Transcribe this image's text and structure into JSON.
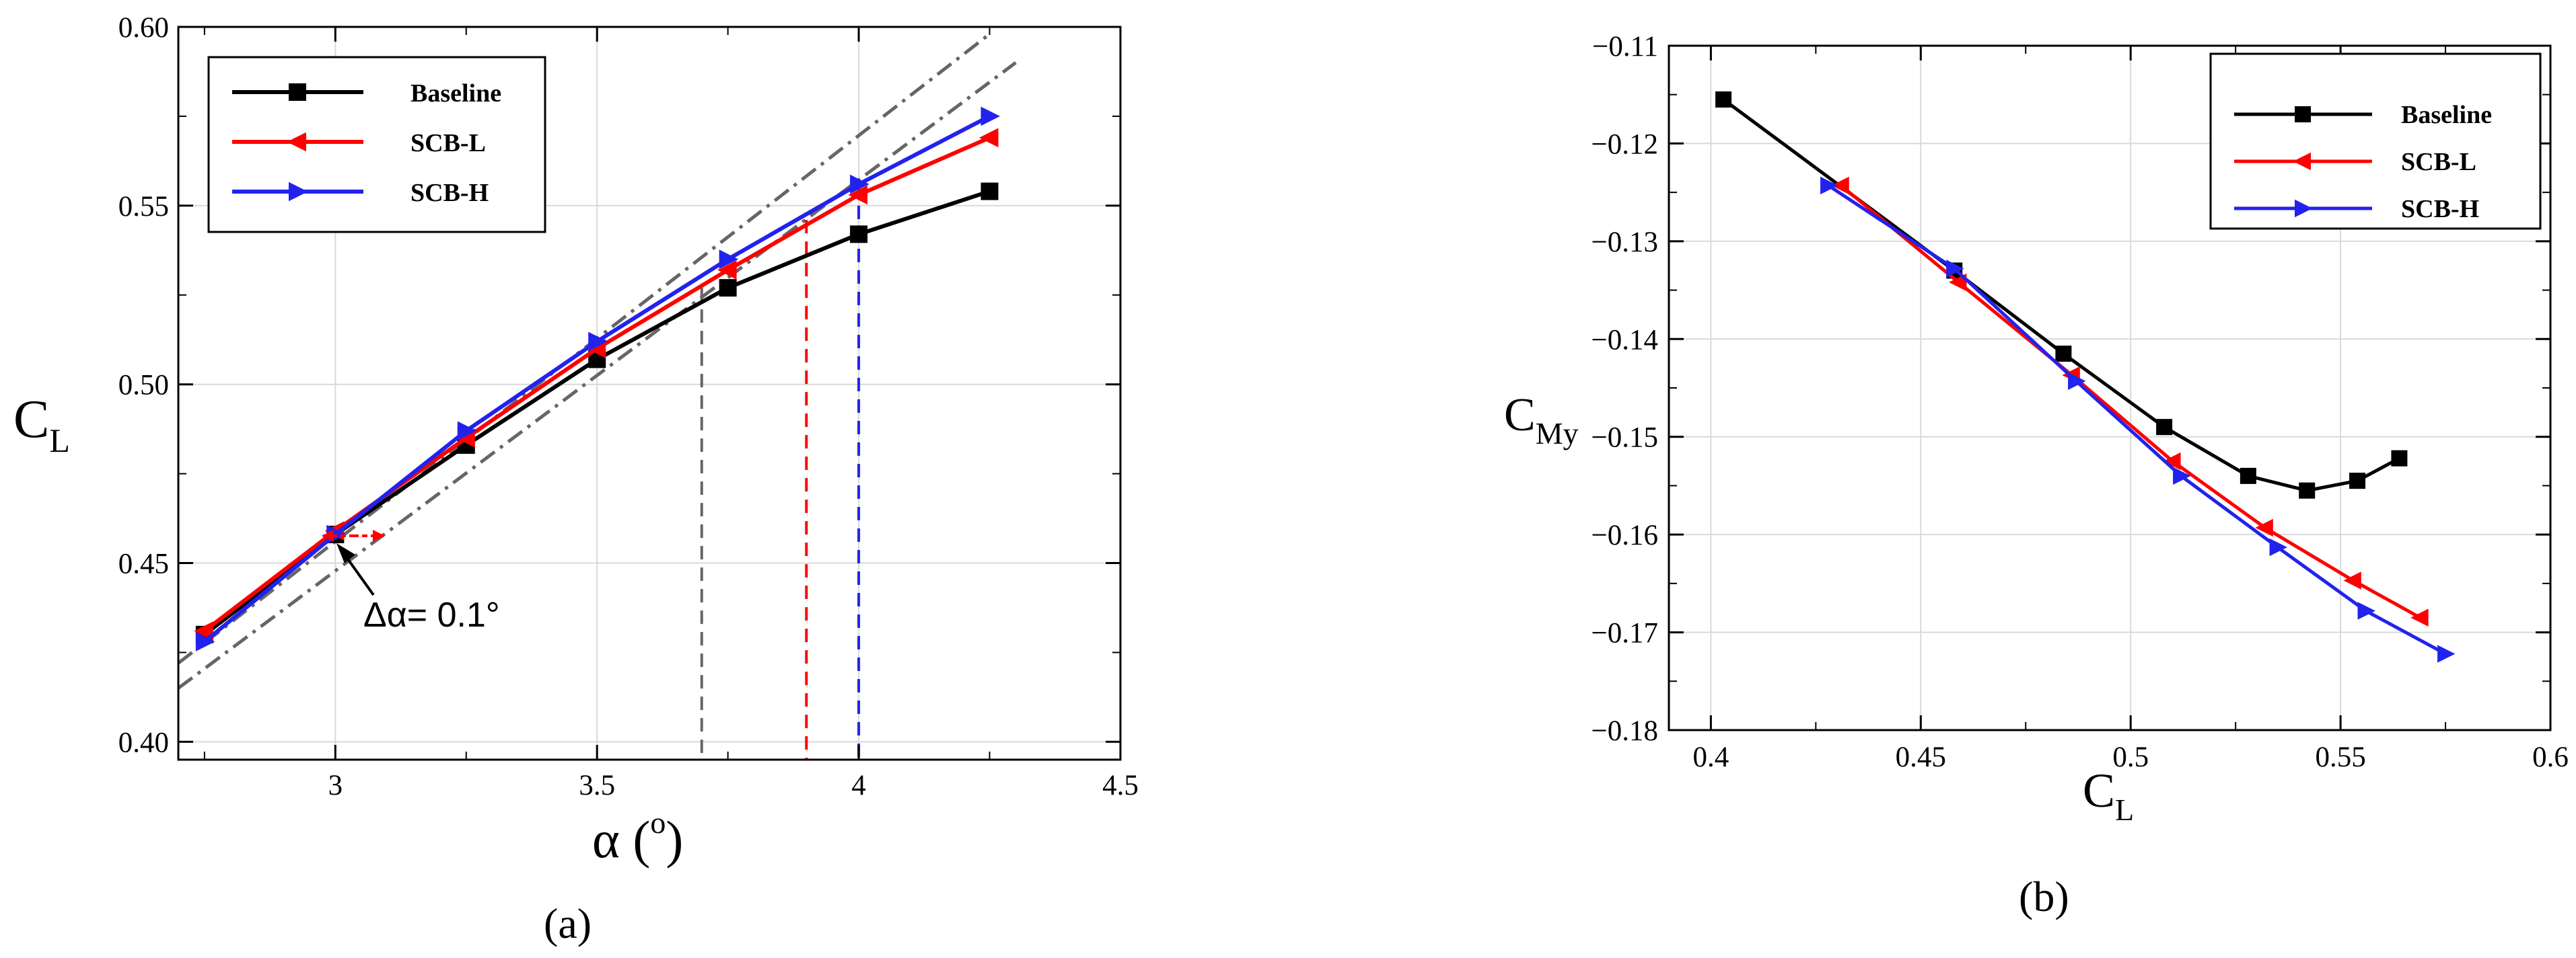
{
  "chart_data": [
    {
      "type": "line",
      "panel_label": "(a)",
      "xlabel": "α (°)",
      "ylabel": "C_L",
      "xlim": [
        2.7,
        4.5
      ],
      "ylim": [
        0.395,
        0.6
      ],
      "xticks": [
        "3",
        "3.5",
        "4",
        "4.5"
      ],
      "yticks": [
        "0.40",
        "0.45",
        "0.50",
        "0.55",
        "0.60"
      ],
      "grid": true,
      "legend_position": "top-left",
      "annotation": "Δα= 0.1°",
      "series": [
        {
          "name": "Baseline",
          "color": "#000000",
          "marker": "square",
          "x": [
            2.75,
            3.0,
            3.25,
            3.5,
            3.75,
            4.0,
            4.25
          ],
          "y": [
            0.43,
            0.458,
            0.483,
            0.507,
            0.527,
            0.542,
            0.554
          ]
        },
        {
          "name": "SCB-L",
          "color": "#ff0000",
          "marker": "triangle-left",
          "x": [
            2.75,
            3.0,
            3.25,
            3.5,
            3.75,
            4.0,
            4.25
          ],
          "y": [
            0.431,
            0.459,
            0.485,
            0.51,
            0.532,
            0.553,
            0.569
          ]
        },
        {
          "name": "SCB-H",
          "color": "#2222ee",
          "marker": "triangle-right",
          "x": [
            2.75,
            3.0,
            3.25,
            3.5,
            3.75,
            4.0,
            4.25
          ],
          "y": [
            0.428,
            0.458,
            0.487,
            0.512,
            0.535,
            0.556,
            0.575
          ]
        }
      ],
      "reference_lines": [
        {
          "style": "dashdot",
          "color": "#666666",
          "x": [
            2.7,
            4.25
          ],
          "y": [
            0.422,
            0.598
          ]
        },
        {
          "style": "dashdot",
          "color": "#666666",
          "x": [
            2.7,
            4.3
          ],
          "y": [
            0.415,
            0.59
          ]
        }
      ],
      "vertical_markers": [
        {
          "color": "#666666",
          "x": 3.7,
          "y": 0.527
        },
        {
          "color": "#ff0000",
          "x": 3.9,
          "y": 0.546
        },
        {
          "color": "#2222ee",
          "x": 4.0,
          "y": 0.556
        }
      ]
    },
    {
      "type": "line",
      "panel_label": "(b)",
      "xlabel": "C_L",
      "ylabel": "C_My",
      "xlim": [
        0.39,
        0.6
      ],
      "ylim": [
        -0.18,
        -0.11
      ],
      "xticks": [
        "0.4",
        "0.45",
        "0.5",
        "0.55",
        "0.6"
      ],
      "yticks": [
        "−0.11",
        "−0.12",
        "−0.13",
        "−0.14",
        "−0.15",
        "−0.16",
        "−0.17",
        "−0.18"
      ],
      "grid": true,
      "legend_position": "top-right",
      "series": [
        {
          "name": "Baseline",
          "color": "#000000",
          "marker": "square",
          "x": [
            0.403,
            0.458,
            0.484,
            0.508,
            0.528,
            0.542,
            0.554,
            0.564
          ],
          "y": [
            -0.1155,
            -0.133,
            -0.1415,
            -0.149,
            -0.154,
            -0.1555,
            -0.1545,
            -0.1522
          ]
        },
        {
          "name": "SCB-L",
          "color": "#ff0000",
          "marker": "triangle-left",
          "x": [
            0.431,
            0.459,
            0.486,
            0.51,
            0.532,
            0.553,
            0.569
          ],
          "y": [
            -0.1243,
            -0.1342,
            -0.1437,
            -0.1525,
            -0.1593,
            -0.1647,
            -0.1685
          ]
        },
        {
          "name": "SCB-H",
          "color": "#2222ee",
          "marker": "triangle-right",
          "x": [
            0.428,
            0.458,
            0.487,
            0.512,
            0.535,
            0.556,
            0.575
          ],
          "y": [
            -0.1243,
            -0.1328,
            -0.1443,
            -0.154,
            -0.1613,
            -0.1678,
            -0.1722
          ]
        }
      ]
    }
  ]
}
